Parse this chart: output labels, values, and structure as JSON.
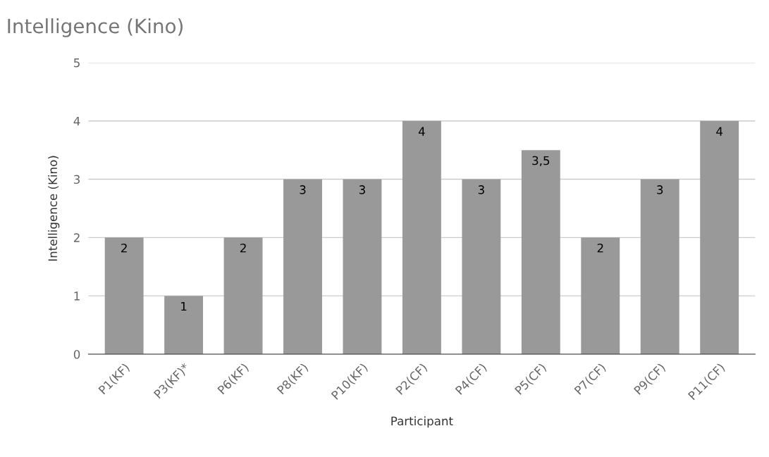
{
  "chart_data": {
    "type": "bar",
    "title": "Intelligence (Kino)",
    "xlabel": "Participant",
    "ylabel": "Intelligence (Kino)",
    "categories": [
      "P1(KF)",
      "P3(KF)*",
      "P6(KF)",
      "P8(KF)",
      "P10(KF)",
      "P2(CF)",
      "P4(CF)",
      "P5(CF)",
      "P7(CF)",
      "P9(CF)",
      "P11(CF)"
    ],
    "values": [
      2,
      1,
      2,
      3,
      3,
      4,
      3,
      3.5,
      2,
      3,
      4
    ],
    "value_labels": [
      "2",
      "1",
      "2",
      "3",
      "3",
      "4",
      "3",
      "3,5",
      "2",
      "3",
      "4"
    ],
    "color": "#999999",
    "ylim": [
      0,
      5
    ],
    "yticks": [
      0,
      1,
      2,
      3,
      4,
      5
    ],
    "grid": "y",
    "legend": false
  }
}
